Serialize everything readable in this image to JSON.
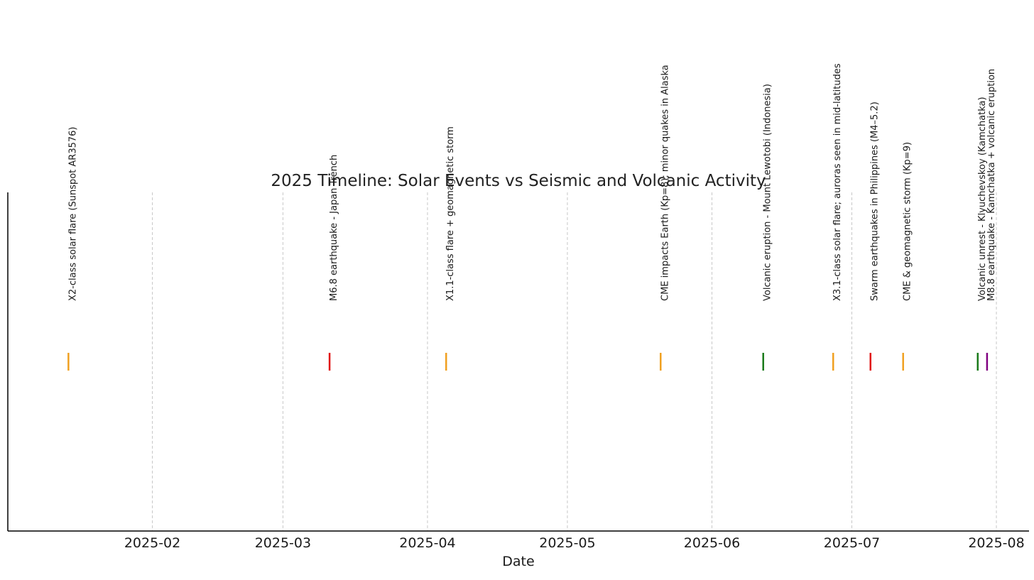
{
  "chart_data": {
    "type": "timeline",
    "title": "2025 Timeline: Solar Events vs Seismic and Volcanic Activity",
    "xlabel": "Date",
    "ylabel": "",
    "grid": "vertical dashed at month ticks",
    "xlim": [
      "2025-01-01",
      "2025-08-08"
    ],
    "x_ticks": [
      "2025-02",
      "2025-03",
      "2025-04",
      "2025-05",
      "2025-06",
      "2025-07",
      "2025-08"
    ],
    "events": [
      {
        "date": "2025-01-14",
        "label": "X2-class solar flare (Sunspot AR3576)",
        "color": "#f0a020"
      },
      {
        "date": "2025-03-11",
        "label": "M6.8 earthquake - Japan Trench",
        "color": "#e01010"
      },
      {
        "date": "2025-04-05",
        "label": "X1.1-class flare + geomagnetic storm",
        "color": "#f0a020"
      },
      {
        "date": "2025-05-21",
        "label": "CME impacts Earth (Kp=8); minor quakes in Alaska",
        "color": "#f0a020"
      },
      {
        "date": "2025-06-12",
        "label": "Volcanic eruption - Mount Lewotobi (Indonesia)",
        "color": "#1a7a1a"
      },
      {
        "date": "2025-06-27",
        "label": "X3.1-class solar flare; auroras seen in mid-latitudes",
        "color": "#f0a020"
      },
      {
        "date": "2025-07-05",
        "label": "Swarm earthquakes in Philippines (M4–5.2)",
        "color": "#e01010"
      },
      {
        "date": "2025-07-12",
        "label": "CME & geomagnetic storm (Kp=9)",
        "color": "#f0a020"
      },
      {
        "date": "2025-07-28",
        "label": "Volcanic unrest - Klyuchevskoy (Kamchatka)",
        "color": "#1a7a1a"
      },
      {
        "date": "2025-07-30",
        "label": "M8.8 earthquake - Kamchatka + volcanic eruption",
        "color": "#800080"
      }
    ]
  }
}
